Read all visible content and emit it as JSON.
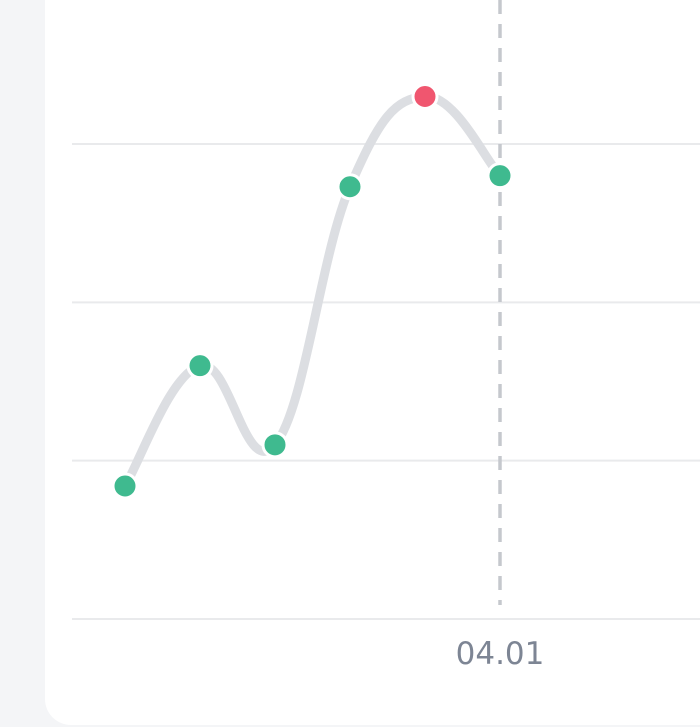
{
  "chart_data": {
    "type": "line",
    "title": "",
    "xlabel": "",
    "ylabel": "",
    "x_tick_labels": [
      "04.01"
    ],
    "marker_index": 5,
    "ylim": [
      0,
      3
    ],
    "gridlines": [
      0,
      1,
      2,
      3
    ],
    "grid": true,
    "values": [
      0.84,
      1.6,
      1.1,
      2.73,
      3.3,
      2.8
    ],
    "highlight_index": 4,
    "colors": {
      "line": "#dcdee2",
      "point": "#3fba8f",
      "highlight": "#f0566f",
      "grid": "#e9eaec",
      "marker_line": "#c5c8cd",
      "tick_text": "#7d8594"
    }
  }
}
